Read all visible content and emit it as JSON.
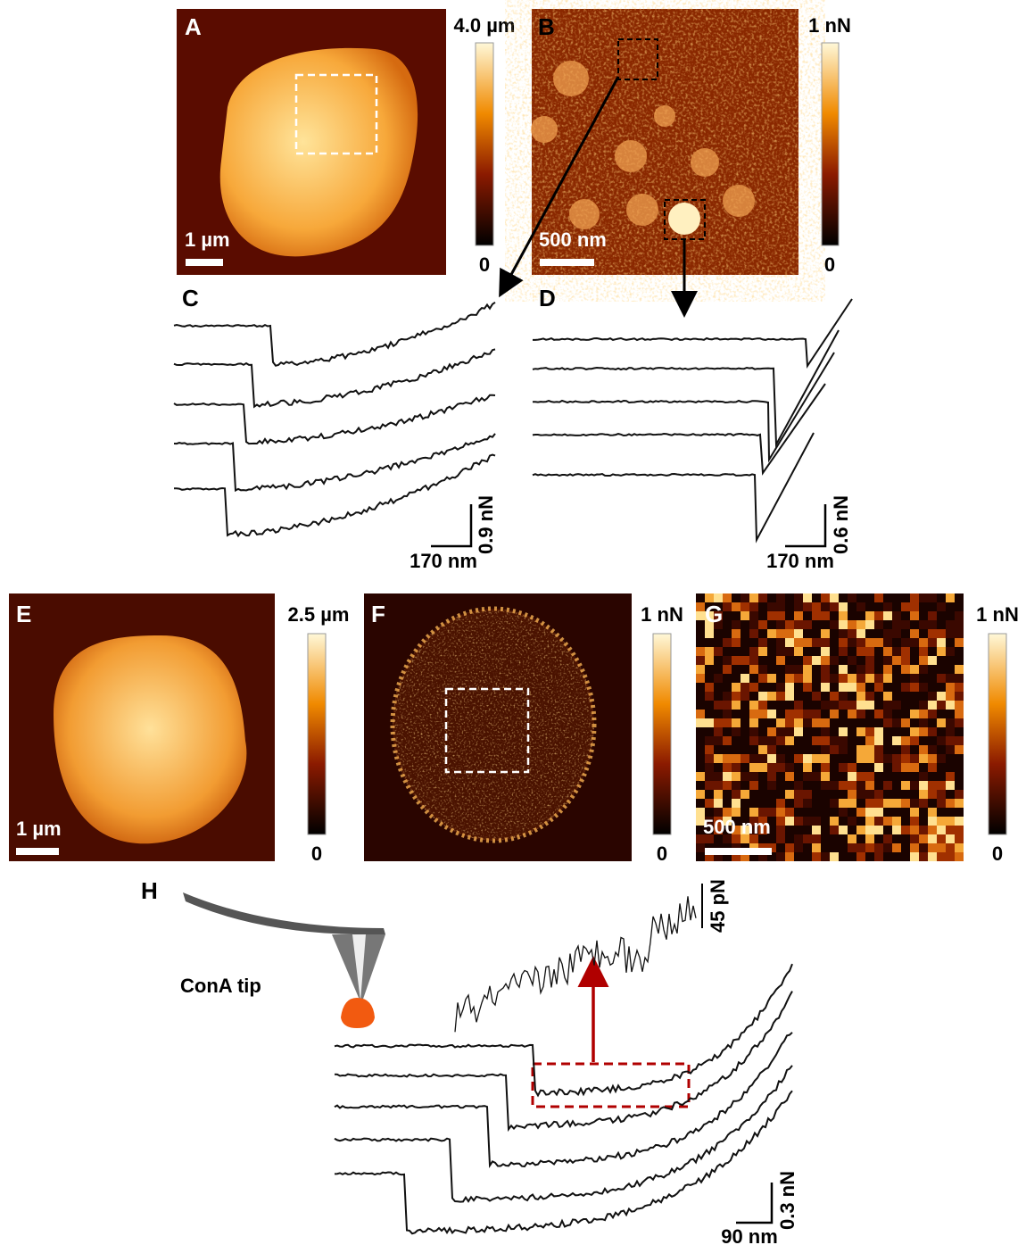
{
  "panels": [
    {
      "label": "A",
      "colorbar": {
        "max": "4.0 µm",
        "min": "0"
      },
      "scale_bar": "1 µm"
    },
    {
      "label": "B",
      "colorbar": {
        "max": "1 nN",
        "min": "0"
      },
      "scale_bar": "500 nm"
    },
    {
      "label": "C",
      "scale_y": "0.9 nN",
      "scale_x": "170 nm"
    },
    {
      "label": "D",
      "scale_y": "0.6 nN",
      "scale_x": "170 nm"
    },
    {
      "label": "E",
      "colorbar": {
        "max": "2.5 µm",
        "min": "0"
      },
      "scale_bar": "1 µm"
    },
    {
      "label": "F",
      "colorbar": {
        "max": "1 nN",
        "min": "0"
      }
    },
    {
      "label": "G",
      "colorbar": {
        "max": "1 nN",
        "min": "0"
      },
      "scale_bar": "500 nm"
    },
    {
      "label": "H",
      "tip": "ConA tip",
      "scale_inset": "45 pN",
      "scale_y": "0.3 nN",
      "scale_x": "90 nm"
    }
  ]
}
